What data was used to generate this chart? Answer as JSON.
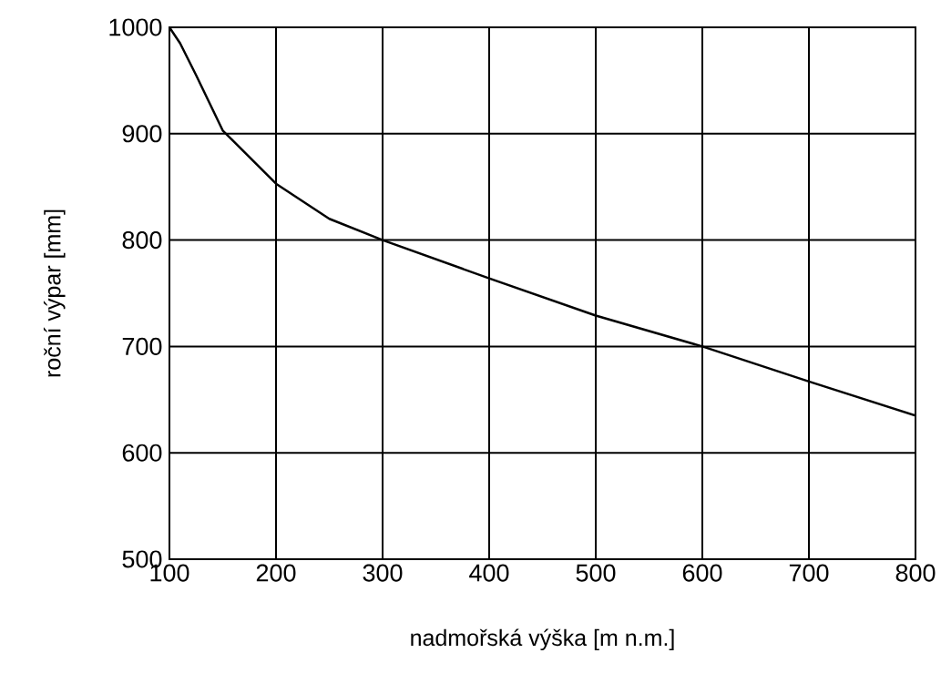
{
  "chart_data": {
    "type": "line",
    "xlabel": "nadmořská výška [m n.m.]",
    "ylabel": "roční výpar [mm]",
    "x": [
      100,
      110,
      125,
      150,
      200,
      250,
      300,
      400,
      500,
      600,
      700,
      800
    ],
    "series": [
      {
        "color": "#000000",
        "values": [
          1000,
          985,
          955,
          903,
          853,
          820,
          800,
          764,
          729,
          700,
          667,
          635
        ]
      }
    ],
    "xlim": [
      100,
      800
    ],
    "ylim": [
      500,
      1000
    ],
    "xticks": [
      100,
      200,
      300,
      400,
      500,
      600,
      700,
      800
    ],
    "yticks": [
      500,
      600,
      700,
      800,
      900,
      1000
    ],
    "grid": true,
    "legend": false,
    "marker": "none",
    "line_style": "solid"
  }
}
